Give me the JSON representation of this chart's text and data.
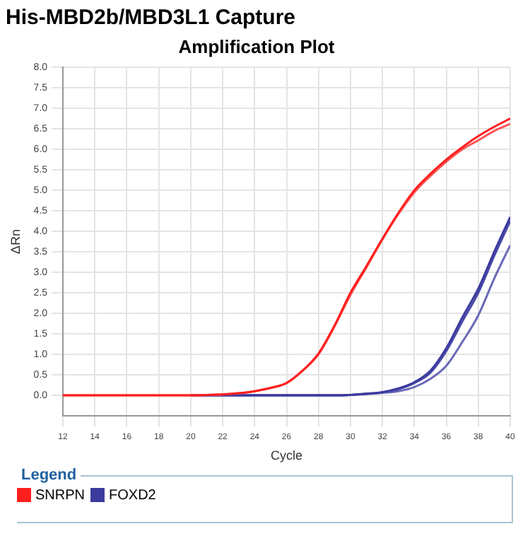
{
  "chart_data": {
    "type": "line",
    "title": "His-MBD2b/MBD3L1 Capture",
    "subtitle": "Amplification Plot",
    "xlabel": "Cycle",
    "ylabel": "ΔRn",
    "legend_title": "Legend",
    "x": [
      12,
      13,
      14,
      15,
      16,
      17,
      18,
      19,
      20,
      21,
      22,
      23,
      24,
      25,
      26,
      27,
      28,
      29,
      30,
      31,
      32,
      33,
      34,
      35,
      36,
      37,
      38,
      39,
      40
    ],
    "series": [
      {
        "name": "SNRPN",
        "color": "#ff1f1f",
        "values": [
          0,
          0,
          0,
          0,
          0,
          0,
          0,
          0,
          0,
          0.01,
          0.02,
          0.05,
          0.1,
          0.18,
          0.3,
          0.6,
          1.02,
          1.7,
          2.5,
          3.15,
          3.82,
          4.45,
          5.0,
          5.4,
          5.75,
          6.05,
          6.32,
          6.55,
          6.75
        ]
      },
      {
        "color": "#ff5555",
        "values": [
          0,
          0,
          0,
          0,
          0,
          0,
          0,
          0,
          0,
          0.01,
          0.02,
          0.05,
          0.1,
          0.18,
          0.3,
          0.6,
          1.0,
          1.68,
          2.45,
          3.12,
          3.8,
          4.42,
          4.95,
          5.35,
          5.7,
          6.0,
          6.22,
          6.45,
          6.62
        ]
      },
      {
        "name": "FOXD2",
        "color": "#3b3b9e",
        "values": [
          null,
          null,
          null,
          null,
          null,
          null,
          null,
          null,
          0,
          0,
          0,
          0,
          0,
          0,
          0,
          0,
          0,
          0,
          0.01,
          0.04,
          0.08,
          0.17,
          0.32,
          0.6,
          1.15,
          1.9,
          2.6,
          3.5,
          4.35
        ]
      },
      {
        "color": "#4a4aa8",
        "values": [
          null,
          null,
          null,
          null,
          null,
          null,
          null,
          null,
          0,
          0,
          0,
          0,
          0,
          0,
          0,
          0,
          0,
          0,
          0.01,
          0.04,
          0.07,
          0.15,
          0.3,
          0.55,
          1.08,
          1.8,
          2.5,
          3.4,
          4.25
        ]
      },
      {
        "color": "#6a6ab8",
        "values": [
          null,
          null,
          null,
          null,
          null,
          null,
          null,
          null,
          0,
          0,
          0,
          0,
          0,
          0,
          0,
          0,
          0,
          0,
          0.01,
          0.03,
          0.06,
          0.1,
          0.2,
          0.4,
          0.72,
          1.3,
          1.95,
          2.85,
          3.66
        ]
      }
    ],
    "xlim": [
      12,
      40
    ],
    "xticks": [
      12,
      14,
      16,
      18,
      20,
      22,
      24,
      26,
      28,
      30,
      32,
      34,
      36,
      38,
      40
    ],
    "ylim": [
      -0.5,
      8
    ],
    "yticks": [
      {
        "value": 0,
        "label": "0.0"
      },
      {
        "value": 0.5,
        "label": "0.5"
      },
      {
        "value": 1,
        "label": "1.0"
      },
      {
        "value": 1.5,
        "label": "1.5"
      },
      {
        "value": 2,
        "label": "2.0"
      },
      {
        "value": 2.5,
        "label": "2.5"
      },
      {
        "value": 3,
        "label": "3.0"
      },
      {
        "value": 3.5,
        "label": "3.5"
      },
      {
        "value": 4,
        "label": "4.0"
      },
      {
        "value": 4.5,
        "label": "4.5"
      },
      {
        "value": 5,
        "label": "5.0"
      },
      {
        "value": 5.5,
        "label": "5.5"
      },
      {
        "value": 6,
        "label": "6.0"
      },
      {
        "value": 6.5,
        "label": "6.5"
      },
      {
        "value": 7,
        "label": "7.0"
      },
      {
        "value": 7.5,
        "label": "7.5"
      },
      {
        "value": 8,
        "label": "8.0"
      }
    ],
    "grid": true,
    "legend": "bottom",
    "marker": "none",
    "line_style": "solid"
  }
}
